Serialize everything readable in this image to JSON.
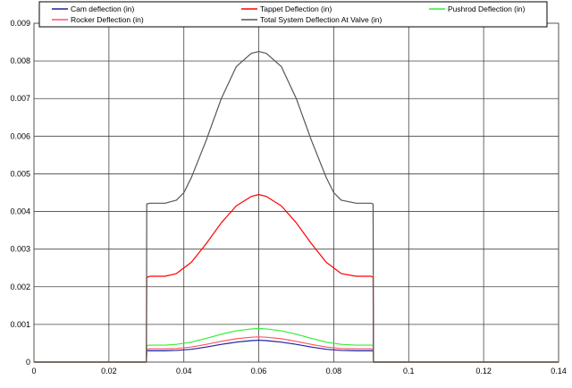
{
  "chart_data": {
    "type": "line",
    "title": "",
    "xlabel": "",
    "ylabel": "",
    "xlim": [
      0,
      0.14
    ],
    "ylim": [
      0,
      0.009
    ],
    "xticks": [
      "0",
      "0.02",
      "0.04",
      "0.06",
      "0.08",
      "0.1",
      "0.12",
      "0.14"
    ],
    "yticks": [
      "0",
      "0.001",
      "0.002",
      "0.003",
      "0.004",
      "0.005",
      "0.006",
      "0.007",
      "0.008",
      "0.009"
    ],
    "grid": true,
    "legend_position": "top",
    "series": [
      {
        "name": "Cam deflection (in)",
        "color": "#1f1f9e",
        "x": [
          0,
          0.03,
          0.0301,
          0.031,
          0.035,
          0.038,
          0.042,
          0.046,
          0.05,
          0.054,
          0.058,
          0.06,
          0.062,
          0.066,
          0.07,
          0.074,
          0.078,
          0.082,
          0.086,
          0.09,
          0.0905,
          0.0906,
          0.14
        ],
        "y": [
          0,
          0,
          0.0003,
          0.0003,
          0.0003,
          0.00031,
          0.00034,
          0.0004,
          0.00047,
          0.00053,
          0.00057,
          0.00058,
          0.00057,
          0.00053,
          0.00047,
          0.0004,
          0.00034,
          0.00031,
          0.0003,
          0.0003,
          0.0003,
          0,
          0
        ]
      },
      {
        "name": "Tappet Deflection (in)",
        "color": "#ff0000",
        "x": [
          0,
          0.03,
          0.0301,
          0.031,
          0.035,
          0.038,
          0.042,
          0.046,
          0.05,
          0.054,
          0.058,
          0.06,
          0.062,
          0.066,
          0.07,
          0.074,
          0.078,
          0.082,
          0.086,
          0.09,
          0.0905,
          0.0906,
          0.14
        ],
        "y": [
          0,
          0,
          0.00225,
          0.00228,
          0.00228,
          0.00235,
          0.00265,
          0.00315,
          0.0037,
          0.00415,
          0.0044,
          0.00445,
          0.0044,
          0.00415,
          0.0037,
          0.00315,
          0.00265,
          0.00235,
          0.00228,
          0.00228,
          0.00225,
          0,
          0
        ]
      },
      {
        "name": "Pushrod Deflection (in)",
        "color": "#33ee33",
        "x": [
          0,
          0.03,
          0.0301,
          0.031,
          0.035,
          0.038,
          0.042,
          0.046,
          0.05,
          0.054,
          0.058,
          0.06,
          0.062,
          0.066,
          0.07,
          0.074,
          0.078,
          0.082,
          0.086,
          0.09,
          0.0905,
          0.0906,
          0.14
        ],
        "y": [
          0,
          0,
          0.00044,
          0.00045,
          0.00045,
          0.00047,
          0.00053,
          0.00063,
          0.00074,
          0.00083,
          0.00088,
          0.00089,
          0.00088,
          0.00083,
          0.00074,
          0.00063,
          0.00053,
          0.00047,
          0.00045,
          0.00045,
          0.00044,
          0,
          0
        ]
      },
      {
        "name": "Rocker Deflection (in)",
        "color": "#ff5566",
        "x": [
          0,
          0.03,
          0.0301,
          0.031,
          0.035,
          0.038,
          0.042,
          0.046,
          0.05,
          0.054,
          0.058,
          0.06,
          0.062,
          0.066,
          0.07,
          0.074,
          0.078,
          0.082,
          0.086,
          0.09,
          0.0905,
          0.0906,
          0.14
        ],
        "y": [
          0,
          0,
          0.00034,
          0.00035,
          0.00035,
          0.00036,
          0.0004,
          0.00047,
          0.00055,
          0.00062,
          0.00066,
          0.00067,
          0.00066,
          0.00062,
          0.00055,
          0.00047,
          0.0004,
          0.00036,
          0.00035,
          0.00035,
          0.00034,
          0,
          0
        ]
      },
      {
        "name": "Total System Deflection At Valve (in)",
        "color": "#555555",
        "x": [
          0,
          0.03,
          0.0301,
          0.031,
          0.035,
          0.038,
          0.04,
          0.042,
          0.046,
          0.05,
          0.054,
          0.058,
          0.06,
          0.062,
          0.066,
          0.07,
          0.074,
          0.078,
          0.08,
          0.082,
          0.086,
          0.09,
          0.0905,
          0.0906,
          0.14
        ],
        "y": [
          0,
          0,
          0.0042,
          0.00422,
          0.00422,
          0.0043,
          0.0045,
          0.0049,
          0.0059,
          0.007,
          0.00785,
          0.0082,
          0.00825,
          0.0082,
          0.00785,
          0.007,
          0.0059,
          0.0049,
          0.0045,
          0.0043,
          0.00422,
          0.00422,
          0.0042,
          0,
          0
        ]
      }
    ]
  }
}
